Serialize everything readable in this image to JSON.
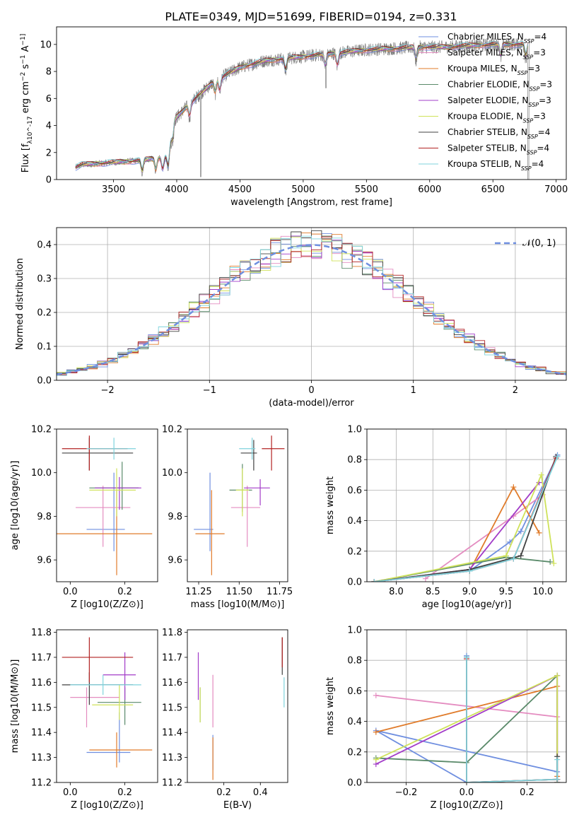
{
  "figure": {
    "title": "PLATE=0349, MJD=51699, FIBERID=0194, z=0.331"
  },
  "colors": {
    "models": [
      "#6f8fe0",
      "#e48cc0",
      "#e07b2a",
      "#5a8a6a",
      "#a23cc8",
      "#cfe25a",
      "#404040",
      "#b22222",
      "#7fd3dd"
    ],
    "gaussian": "#6f8fe0",
    "data": "#808080",
    "grid": "#b0b0b0"
  },
  "chart_data": [
    {
      "id": "spectrum",
      "type": "line",
      "title": "PLATE=0349, MJD=51699, FIBERID=0194, z=0.331",
      "xlabel": "wavelength [Angstrom, rest frame]",
      "ylabel": "Flux [f_λ10^-17 erg cm^-2 s^-1 A^-1]",
      "xlim": [
        3050,
        7080
      ],
      "ylim": [
        0,
        11.3
      ],
      "xticks": [
        3500,
        4000,
        4500,
        5000,
        5500,
        6000,
        6500,
        7000
      ],
      "yticks": [
        0,
        2,
        4,
        6,
        8,
        10
      ],
      "grid": false,
      "legend_position": "top-right",
      "data_range": [
        3200,
        6790
      ],
      "continuum": {
        "x": [
          3200,
          3250,
          3400,
          3550,
          3700,
          3780,
          3850,
          3930,
          3980,
          4100,
          4300,
          4500,
          4700,
          4900,
          5100,
          5300,
          5500,
          5700,
          5900,
          6100,
          6300,
          6500,
          6790
        ],
        "y": [
          0.9,
          1.1,
          1.2,
          1.3,
          1.4,
          1.5,
          1.6,
          1.7,
          4.4,
          5.6,
          7.3,
          8.3,
          8.8,
          9.0,
          9.2,
          9.4,
          9.6,
          9.7,
          9.8,
          9.8,
          9.9,
          10.0,
          10.0
        ]
      },
      "series": [
        {
          "name": "Chabrier MILES, N_SSP=4"
        },
        {
          "name": "Salpeter MILES, N_SSP=3"
        },
        {
          "name": "Kroupa MILES, N_SSP=3"
        },
        {
          "name": "Chabrier ELODIE, N_SSP=3"
        },
        {
          "name": "Salpeter ELODIE, N_SSP=3"
        },
        {
          "name": "Kroupa ELODIE, N_SSP=3"
        },
        {
          "name": "Chabrier STELIB, N_SSP=4"
        },
        {
          "name": "Salpeter STELIB, N_SSP=4"
        },
        {
          "name": "Kroupa STELIB, N_SSP=4"
        }
      ]
    },
    {
      "id": "residuals",
      "type": "line",
      "xlabel": "(data-model)/error",
      "ylabel": "Normed distribution",
      "xlim": [
        -2.5,
        2.5
      ],
      "ylim": [
        0,
        0.45
      ],
      "xticks": [
        -2,
        -1,
        0,
        1,
        2
      ],
      "yticks": [
        0.0,
        0.1,
        0.2,
        0.3,
        0.4
      ],
      "grid": true,
      "legend_position": "top-right",
      "bin_width": 0.1,
      "bin_start": -2.5,
      "gaussian_label": "𝒩(0, 1)"
    },
    {
      "id": "age-vs-Z",
      "type": "scatter",
      "xlabel": "Z [log10(Z/Z⊙)]",
      "ylabel": "age [log10(age/yr)]",
      "xlim": [
        -0.05,
        0.32
      ],
      "ylim": [
        9.5,
        10.2
      ],
      "xticks": [
        0.0,
        0.2
      ],
      "yticks": [
        9.6,
        9.8,
        10.0,
        10.2
      ],
      "grid": false,
      "errorbars": [
        {
          "x": 0.16,
          "y": 9.74,
          "xerr": [
            0.1,
            0.04
          ],
          "yerr": [
            0.1,
            0.26
          ]
        },
        {
          "x": 0.12,
          "y": 9.84,
          "xerr": [
            0.1,
            0.1
          ],
          "yerr": [
            0.18,
            0.1
          ]
        },
        {
          "x": 0.17,
          "y": 9.72,
          "xerr": [
            0.23,
            0.13
          ],
          "yerr": [
            0.19,
            0.2
          ]
        },
        {
          "x": 0.19,
          "y": 9.93,
          "xerr": [
            0.12,
            0.06
          ],
          "yerr": [
            0.1,
            0.12
          ]
        },
        {
          "x": 0.18,
          "y": 9.93,
          "xerr": [
            0.09,
            0.08
          ],
          "yerr": [
            0.1,
            0.05
          ]
        },
        {
          "x": 0.17,
          "y": 9.92,
          "xerr": [
            0.1,
            0.07
          ],
          "yerr": [
            0.12,
            0.1
          ]
        },
        {
          "x": 0.07,
          "y": 10.09,
          "xerr": [
            0.1,
            0.16
          ],
          "yerr": [
            0.08,
            0.07
          ]
        },
        {
          "x": 0.07,
          "y": 10.11,
          "xerr": [
            0.1,
            0.14
          ],
          "yerr": [
            0.1,
            0.06
          ]
        },
        {
          "x": 0.16,
          "y": 10.11,
          "xerr": [
            0.1,
            0.08
          ],
          "yerr": [
            0.05,
            0.05
          ]
        }
      ]
    },
    {
      "id": "age-vs-mass",
      "type": "scatter",
      "xlabel": "mass [log10(M/M⊙)]",
      "ylabel": "",
      "xlim": [
        11.18,
        11.8
      ],
      "ylim": [
        9.5,
        10.2
      ],
      "xticks": [
        11.25,
        11.5,
        11.75
      ],
      "yticks": [
        9.6,
        9.8,
        10.0,
        10.2
      ],
      "grid": false,
      "errorbars": [
        {
          "x": 11.32,
          "y": 9.74,
          "xerr": [
            0.1,
            0.02
          ],
          "yerr": [
            0.1,
            0.26
          ]
        },
        {
          "x": 11.55,
          "y": 9.84,
          "xerr": [
            0.1,
            0.08
          ],
          "yerr": [
            0.18,
            0.1
          ]
        },
        {
          "x": 11.33,
          "y": 9.72,
          "xerr": [
            0.1,
            0.08
          ],
          "yerr": [
            0.19,
            0.2
          ]
        },
        {
          "x": 11.52,
          "y": 9.92,
          "xerr": [
            0.08,
            0.06
          ],
          "yerr": [
            0.1,
            0.12
          ]
        },
        {
          "x": 11.63,
          "y": 9.93,
          "xerr": [
            0.1,
            0.06
          ],
          "yerr": [
            0.08,
            0.04
          ]
        },
        {
          "x": 11.52,
          "y": 9.92,
          "xerr": [
            0.04,
            0.04
          ],
          "yerr": [
            0.12,
            0.1
          ]
        },
        {
          "x": 11.59,
          "y": 10.09,
          "xerr": [
            0.08,
            0.02
          ],
          "yerr": [
            0.08,
            0.06
          ]
        },
        {
          "x": 11.7,
          "y": 10.11,
          "xerr": [
            0.06,
            0.08
          ],
          "yerr": [
            0.1,
            0.06
          ]
        },
        {
          "x": 11.58,
          "y": 10.11,
          "xerr": [
            0.08,
            0.02
          ],
          "yerr": [
            0.05,
            0.05
          ]
        }
      ]
    },
    {
      "id": "massweight-vs-age",
      "type": "line",
      "xlabel": "age [log10(age/yr)]",
      "ylabel": "mass weight",
      "xlim": [
        7.6,
        10.32
      ],
      "ylim": [
        0,
        1.0
      ],
      "xticks": [
        8.0,
        8.5,
        9.0,
        9.5,
        10.0
      ],
      "yticks": [
        0.0,
        0.2,
        0.4,
        0.6,
        0.8,
        1.0
      ],
      "grid": true,
      "series": [
        {
          "x": [
            7.7,
            9.0,
            9.55,
            9.7,
            10.2
          ],
          "y": [
            0.0,
            0.07,
            0.26,
            0.33,
            0.83
          ]
        },
        {
          "x": [
            8.4,
            9.6,
            10.0
          ],
          "y": [
            0.02,
            0.43,
            0.57
          ]
        },
        {
          "x": [
            9.0,
            9.6,
            9.95
          ],
          "y": [
            0.07,
            0.62,
            0.32
          ]
        },
        {
          "x": [
            7.7,
            9.5,
            10.1
          ],
          "y": [
            0.0,
            0.16,
            0.13
          ]
        },
        {
          "x": [
            7.7,
            9.0,
            9.95
          ],
          "y": [
            0.0,
            0.08,
            0.65
          ]
        },
        {
          "x": [
            7.7,
            9.5,
            9.98,
            10.15
          ],
          "y": [
            0.0,
            0.17,
            0.7,
            0.12
          ]
        },
        {
          "x": [
            7.7,
            9.0,
            9.7,
            10.18
          ],
          "y": [
            0.0,
            0.08,
            0.17,
            0.82
          ]
        },
        {
          "x": [
            7.7,
            9.0,
            9.6,
            10.18
          ],
          "y": [
            0.0,
            0.07,
            0.15,
            0.81
          ]
        },
        {
          "x": [
            7.7,
            9.0,
            9.6,
            10.2
          ],
          "y": [
            0.0,
            0.07,
            0.15,
            0.82
          ]
        }
      ]
    },
    {
      "id": "mass-vs-Z",
      "type": "scatter",
      "xlabel": "Z [log10(Z/Z⊙)]",
      "ylabel": "mass [log10(M/M⊙)]",
      "xlim": [
        -0.05,
        0.32
      ],
      "ylim": [
        11.2,
        11.81
      ],
      "xticks": [
        0.0,
        0.2
      ],
      "yticks": [
        11.2,
        11.3,
        11.4,
        11.5,
        11.6,
        11.7,
        11.8
      ],
      "grid": false,
      "errorbars": [
        {
          "x": 0.18,
          "y": 11.32,
          "xerr": [
            0.12,
            0.04
          ],
          "yerr": [
            0.04,
            0.16
          ]
        },
        {
          "x": 0.06,
          "y": 11.54,
          "xerr": [
            0.06,
            0.12
          ],
          "yerr": [
            0.12,
            0.04
          ]
        },
        {
          "x": 0.17,
          "y": 11.33,
          "xerr": [
            0.1,
            0.13
          ],
          "yerr": [
            0.07,
            0.07
          ]
        },
        {
          "x": 0.2,
          "y": 11.52,
          "xerr": [
            0.1,
            0.06
          ],
          "yerr": [
            0.09,
            0.06
          ]
        },
        {
          "x": 0.2,
          "y": 11.63,
          "xerr": [
            0.08,
            0.04
          ],
          "yerr": [
            0.1,
            0.09
          ]
        },
        {
          "x": 0.18,
          "y": 11.51,
          "xerr": [
            0.1,
            0.05
          ],
          "yerr": [
            0.06,
            0.08
          ]
        },
        {
          "x": 0.07,
          "y": 11.59,
          "xerr": [
            0.1,
            0.16
          ],
          "yerr": [
            0.08,
            0.05
          ]
        },
        {
          "x": 0.07,
          "y": 11.7,
          "xerr": [
            0.1,
            0.16
          ],
          "yerr": [
            0.1,
            0.08
          ]
        },
        {
          "x": 0.12,
          "y": 11.59,
          "xerr": [
            0.12,
            0.14
          ],
          "yerr": [
            0.04,
            0.04
          ]
        }
      ]
    },
    {
      "id": "mass-vs-EBV",
      "type": "scatter",
      "xlabel": "E(B-V)",
      "ylabel": "",
      "xlim": [
        0.0,
        0.55
      ],
      "ylim": [
        11.2,
        11.81
      ],
      "xticks": [
        0.2,
        0.4
      ],
      "yticks": [
        11.2,
        11.3,
        11.4,
        11.5,
        11.6,
        11.7,
        11.8
      ],
      "grid": false,
      "errorbars": [
        {
          "x": 0.14,
          "y": 11.33,
          "xerr": [
            0,
            0
          ],
          "yerr": [
            0.08,
            0.06
          ]
        },
        {
          "x": 0.14,
          "y": 11.54,
          "xerr": [
            0,
            0
          ],
          "yerr": [
            0.12,
            0.09
          ]
        },
        {
          "x": 0.14,
          "y": 11.32,
          "xerr": [
            0,
            0
          ],
          "yerr": [
            0.11,
            0.06
          ]
        },
        {
          "x": 0.07,
          "y": 11.52,
          "xerr": [
            0,
            0
          ],
          "yerr": [
            0.08,
            0.06
          ]
        },
        {
          "x": 0.06,
          "y": 11.63,
          "xerr": [
            0,
            0
          ],
          "yerr": [
            0.1,
            0.09
          ]
        },
        {
          "x": 0.07,
          "y": 11.51,
          "xerr": [
            0,
            0
          ],
          "yerr": [
            0.07,
            0.07
          ]
        },
        {
          "x": 0.52,
          "y": 11.69,
          "xerr": [
            0,
            0
          ],
          "yerr": [
            0.06,
            0.09
          ]
        },
        {
          "x": 0.52,
          "y": 11.7,
          "xerr": [
            0,
            0
          ],
          "yerr": [
            0.04,
            0.08
          ]
        },
        {
          "x": 0.53,
          "y": 11.57,
          "xerr": [
            0,
            0
          ],
          "yerr": [
            0.07,
            0.05
          ]
        }
      ]
    },
    {
      "id": "massweight-vs-Z",
      "type": "line",
      "xlabel": "Z [log10(Z/Z⊙)]",
      "ylabel": "mass weight",
      "xlim": [
        -0.33,
        0.33
      ],
      "ylim": [
        0,
        1.0
      ],
      "xticks": [
        -0.2,
        0.0,
        0.2
      ],
      "yticks": [
        0.0,
        0.2,
        0.4,
        0.6,
        0.8,
        1.0
      ],
      "grid": true,
      "series": [
        {
          "x": [
            0.0,
            0.0,
            -0.3,
            0.3,
            0.3
          ],
          "y": [
            0.83,
            0.0,
            0.34,
            0.07,
            0.0
          ]
        },
        {
          "x": [
            -0.3,
            0.3,
            0.3
          ],
          "y": [
            0.57,
            0.43,
            0.0
          ]
        },
        {
          "x": [
            -0.3,
            0.3,
            0.3
          ],
          "y": [
            0.33,
            0.63,
            0.04
          ]
        },
        {
          "x": [
            -0.3,
            0.0,
            0.3,
            0.3
          ],
          "y": [
            0.16,
            0.13,
            0.7,
            0.0
          ]
        },
        {
          "x": [
            -0.3,
            0.3,
            0.3
          ],
          "y": [
            0.12,
            0.7,
            0.0
          ]
        },
        {
          "x": [
            -0.3,
            0.3,
            0.3
          ],
          "y": [
            0.15,
            0.7,
            0.0
          ]
        },
        {
          "x": [
            0.0,
            0.0,
            0.3,
            0.3
          ],
          "y": [
            0.82,
            0.0,
            0.02,
            0.17
          ]
        },
        {
          "x": [
            0.0,
            0.0,
            0.3,
            0.3
          ],
          "y": [
            0.81,
            0.0,
            0.02,
            0.02
          ]
        },
        {
          "x": [
            0.0,
            0.0,
            0.3,
            0.3
          ],
          "y": [
            0.82,
            0.0,
            0.02,
            0.15
          ]
        }
      ]
    }
  ]
}
